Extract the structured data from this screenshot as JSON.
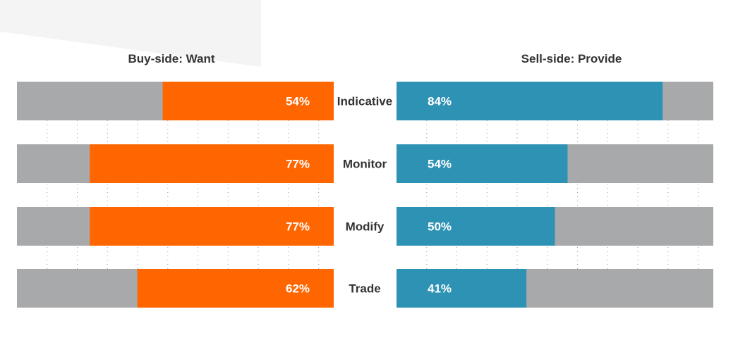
{
  "chart_data": {
    "type": "bar",
    "categories": [
      "Indicative",
      "Monitor",
      "Modify",
      "Trade"
    ],
    "panels": [
      {
        "title": "Buy-side: Want",
        "direction": "right-to-left",
        "xlim": [
          0,
          100
        ],
        "grid": true,
        "series": [
          {
            "values": [
              54,
              77,
              77,
              62
            ]
          }
        ],
        "value_labels": [
          "54%",
          "77%",
          "77%",
          "62%"
        ]
      },
      {
        "title": "Sell-side: Provide",
        "direction": "left-to-right",
        "xlim": [
          0,
          100
        ],
        "grid": true,
        "series": [
          {
            "values": [
              84,
              54,
              50,
              41
            ]
          }
        ],
        "value_labels": [
          "84%",
          "54%",
          "50%",
          "41%"
        ]
      }
    ]
  },
  "colors": {
    "buy_bar": "#ff6600",
    "sell_bar": "#2e92b5",
    "track": "#a7a9ab",
    "grid": "#9a9a9a",
    "text": "#333333",
    "value_text": "#ffffff",
    "corner_shape": "#f4f4f5"
  }
}
